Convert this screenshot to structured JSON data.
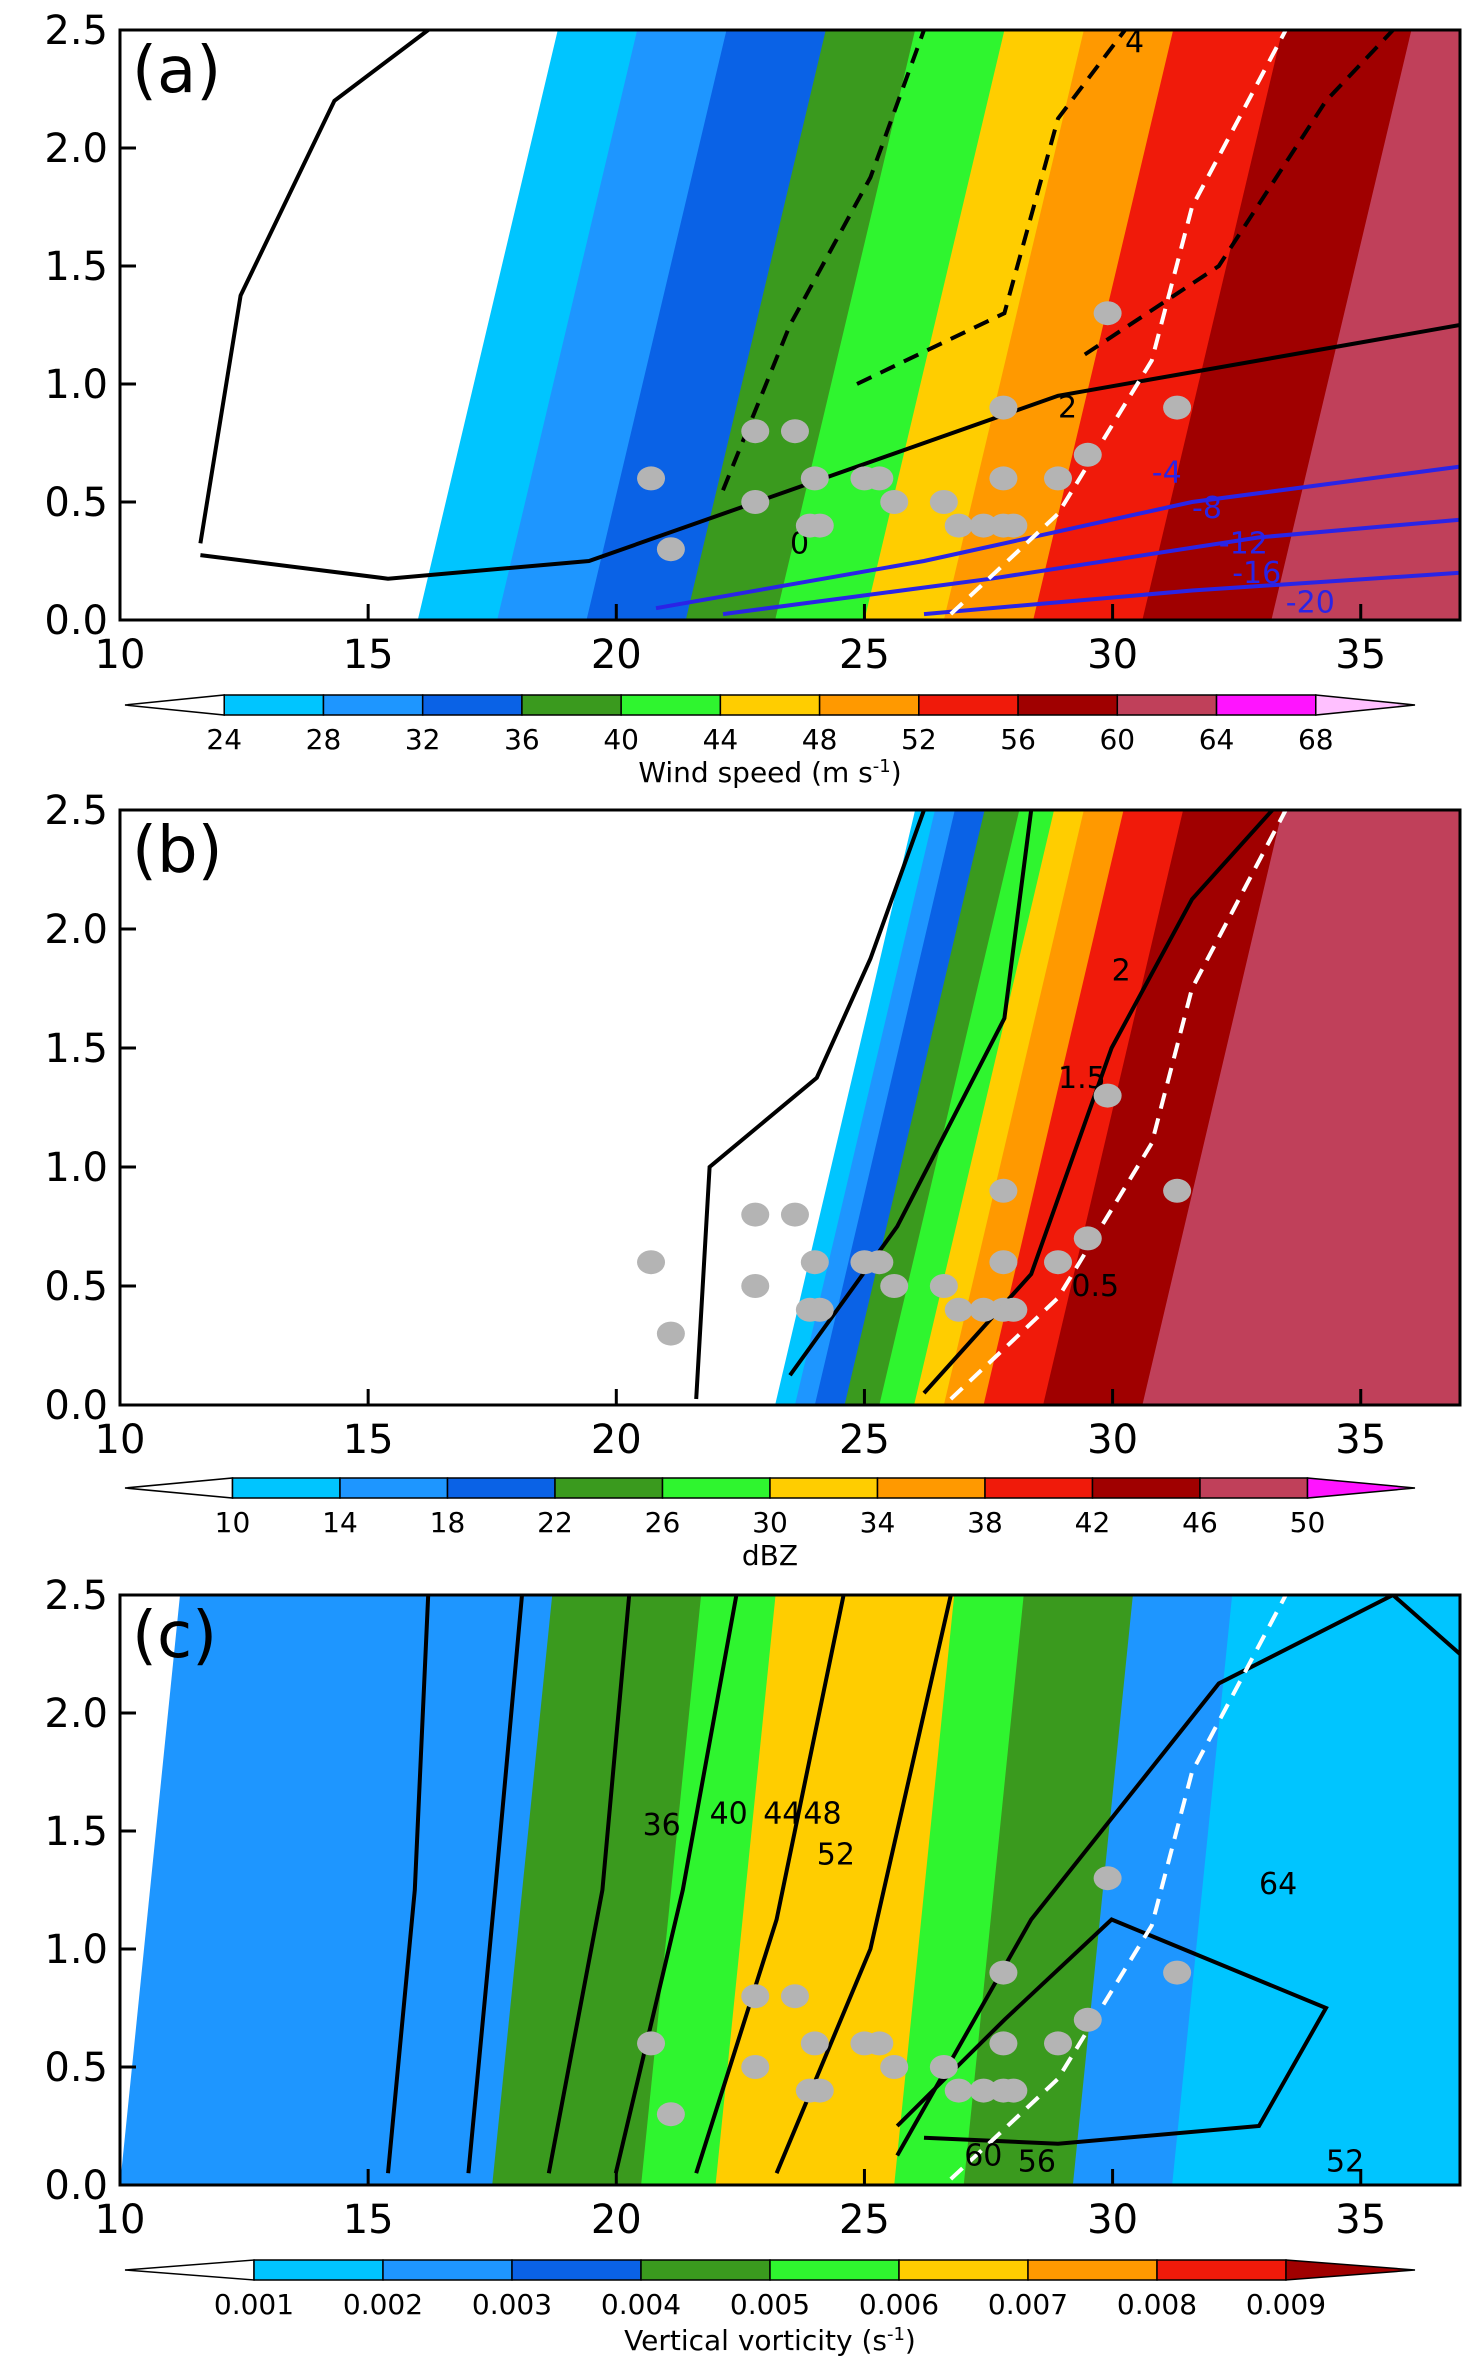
{
  "chart_data": [
    {
      "type": "filled-contour",
      "panel_label": "(a)",
      "xlim": [
        10,
        37
      ],
      "ylim": [
        0.0,
        2.5
      ],
      "xticks": [
        "10",
        "15",
        "20",
        "25",
        "30",
        "35"
      ],
      "yticks": [
        "0.0",
        "0.5",
        "1.0",
        "1.5",
        "2.0",
        "2.5"
      ],
      "colorbar": {
        "label": "Wind speed (m s",
        "label_sup": "-1",
        "label_end": ")",
        "ticks": [
          "24",
          "28",
          "32",
          "36",
          "40",
          "44",
          "48",
          "52",
          "56",
          "60",
          "64",
          "68"
        ],
        "colors": [
          "#ffffff",
          "#00c5ff",
          "#1e96ff",
          "#0a62e6",
          "#3a9a1e",
          "#2ff52f",
          "#ffcd00",
          "#ff9900",
          "#f01a0a",
          "#a00000",
          "#c0405a",
          "#ff14ff",
          "#ffc0ff"
        ]
      },
      "fill_bands": [
        {
          "x": 16.0,
          "color": "#00c5ff"
        },
        {
          "x": 17.6,
          "color": "#1e96ff"
        },
        {
          "x": 19.4,
          "color": "#0a62e6"
        },
        {
          "x": 21.4,
          "color": "#3a9a1e"
        },
        {
          "x": 23.2,
          "color": "#2ff52f"
        },
        {
          "x": 25.0,
          "color": "#ffcd00"
        },
        {
          "x": 26.6,
          "color": "#ff9900"
        },
        {
          "x": 28.4,
          "color": "#f01a0a"
        },
        {
          "x": 30.6,
          "color": "#a00000"
        },
        {
          "x": 33.2,
          "color": "#c0405a"
        }
      ],
      "contour_labels": [
        "4",
        "2",
        "0",
        "-4",
        "-8",
        "-12",
        "-16",
        "-20"
      ],
      "contour_label_colors": [
        "#000000",
        "#000000",
        "#000000",
        "#2a24e6",
        "#2a24e6",
        "#2a24e6",
        "#2a24e6",
        "#2a24e6"
      ]
    },
    {
      "type": "filled-contour",
      "panel_label": "(b)",
      "xlim": [
        10,
        37
      ],
      "ylim": [
        0.0,
        2.5
      ],
      "xticks": [
        "10",
        "15",
        "20",
        "25",
        "30",
        "35"
      ],
      "yticks": [
        "0.0",
        "0.5",
        "1.0",
        "1.5",
        "2.0",
        "2.5"
      ],
      "colorbar": {
        "label": "dBZ",
        "label_sup": "",
        "label_end": "",
        "ticks": [
          "10",
          "14",
          "18",
          "22",
          "26",
          "30",
          "34",
          "38",
          "42",
          "46",
          "50"
        ],
        "colors": [
          "#ffffff",
          "#00c5ff",
          "#1e96ff",
          "#0a62e6",
          "#3a9a1e",
          "#2ff52f",
          "#ffcd00",
          "#ff9900",
          "#f01a0a",
          "#a00000",
          "#c0405a",
          "#ff14ff"
        ]
      },
      "fill_bands": [
        {
          "x": 23.2,
          "color": "#00c5ff"
        },
        {
          "x": 23.6,
          "color": "#1e96ff"
        },
        {
          "x": 24.0,
          "color": "#0a62e6"
        },
        {
          "x": 24.6,
          "color": "#3a9a1e"
        },
        {
          "x": 25.3,
          "color": "#2ff52f"
        },
        {
          "x": 26.0,
          "color": "#ffcd00"
        },
        {
          "x": 26.6,
          "color": "#ff9900"
        },
        {
          "x": 27.4,
          "color": "#f01a0a"
        },
        {
          "x": 28.6,
          "color": "#a00000"
        },
        {
          "x": 30.6,
          "color": "#c0405a"
        }
      ],
      "contour_labels": [
        "2",
        "1.5",
        "0.5"
      ],
      "contour_label_colors": [
        "#000000",
        "#000000",
        "#000000"
      ]
    },
    {
      "type": "filled-contour",
      "panel_label": "(c)",
      "xlim": [
        10,
        37
      ],
      "ylim": [
        0.0,
        2.5
      ],
      "xticks": [
        "10",
        "15",
        "20",
        "25",
        "30",
        "35"
      ],
      "yticks": [
        "0.0",
        "0.5",
        "1.0",
        "1.5",
        "2.0",
        "2.5"
      ],
      "colorbar": {
        "label": "Vertical vorticity (s",
        "label_sup": "-1",
        "label_end": ")",
        "ticks": [
          "0.001",
          "0.002",
          "0.003",
          "0.004",
          "0.005",
          "0.006",
          "0.007",
          "0.008",
          "0.009"
        ],
        "colors": [
          "#ffffff",
          "#00c5ff",
          "#1e96ff",
          "#0a62e6",
          "#3a9a1e",
          "#2ff52f",
          "#ffcd00",
          "#ff9900",
          "#f01a0a",
          "#a00000"
        ]
      },
      "fill_bands": [
        {
          "x": 10.0,
          "color": "#1e96ff"
        },
        {
          "x": 17.5,
          "color": "#3a9a1e"
        },
        {
          "x": 20.5,
          "color": "#2ff52f"
        },
        {
          "x": 22.0,
          "color": "#ffcd00"
        },
        {
          "x": 25.6,
          "color": "#2ff52f"
        },
        {
          "x": 27.0,
          "color": "#3a9a1e"
        },
        {
          "x": 29.2,
          "color": "#1e96ff"
        },
        {
          "x": 31.2,
          "color": "#00c5ff"
        }
      ],
      "contour_labels": [
        "36",
        "40",
        "44",
        "48",
        "52",
        "64",
        "60",
        "56",
        "52"
      ],
      "contour_label_colors": [
        "#000000",
        "#000000",
        "#000000",
        "#000000",
        "#000000",
        "#000000",
        "#000000",
        "#000000",
        "#000000"
      ]
    }
  ],
  "markers": [
    {
      "x": 20.7,
      "y": 0.6
    },
    {
      "x": 21.1,
      "y": 0.3
    },
    {
      "x": 22.8,
      "y": 0.8
    },
    {
      "x": 22.8,
      "y": 0.5
    },
    {
      "x": 23.6,
      "y": 0.8
    },
    {
      "x": 23.9,
      "y": 0.4
    },
    {
      "x": 24.0,
      "y": 0.6
    },
    {
      "x": 24.1,
      "y": 0.4
    },
    {
      "x": 25.0,
      "y": 0.6
    },
    {
      "x": 25.3,
      "y": 0.6
    },
    {
      "x": 25.6,
      "y": 0.5
    },
    {
      "x": 26.6,
      "y": 0.5
    },
    {
      "x": 26.9,
      "y": 0.4
    },
    {
      "x": 27.4,
      "y": 0.4
    },
    {
      "x": 27.8,
      "y": 0.6
    },
    {
      "x": 27.8,
      "y": 0.4
    },
    {
      "x": 28.0,
      "y": 0.4
    },
    {
      "x": 27.8,
      "y": 0.9
    },
    {
      "x": 28.9,
      "y": 0.6
    },
    {
      "x": 29.5,
      "y": 0.7
    },
    {
      "x": 29.9,
      "y": 1.3
    },
    {
      "x": 31.3,
      "y": 0.9
    }
  ],
  "marker_color": "#b4b4b4"
}
